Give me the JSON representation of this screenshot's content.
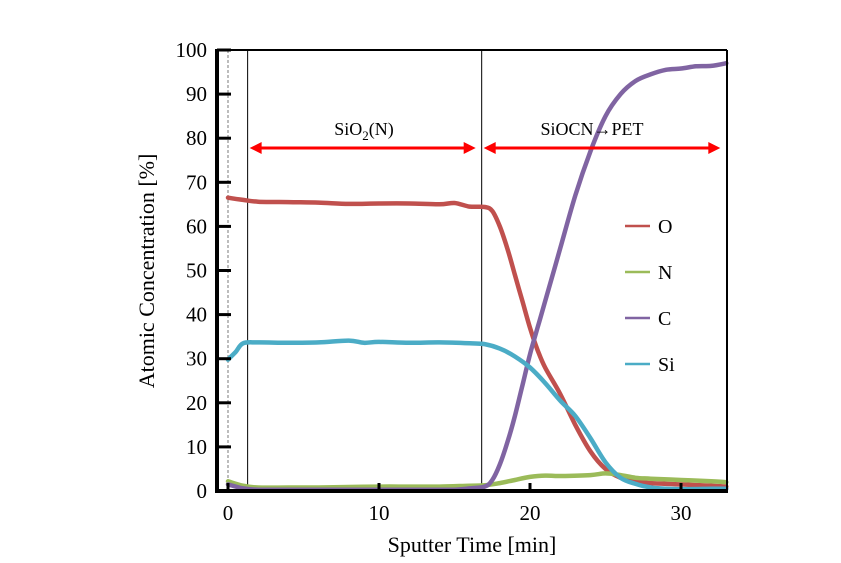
{
  "chart_data": {
    "type": "line",
    "title": "",
    "xlabel": "Sputter Time [min]",
    "ylabel": "Atomic Concentration [%]",
    "xlim": [
      0,
      33
    ],
    "ylim": [
      0,
      100
    ],
    "xticks": [
      0,
      10,
      20,
      30
    ],
    "yticks": [
      0,
      10,
      20,
      30,
      40,
      50,
      60,
      70,
      80,
      90,
      100
    ],
    "grid": false,
    "legend": {
      "position": "right-middle",
      "entries": [
        "O",
        "N",
        "C",
        "Si"
      ]
    },
    "series": [
      {
        "name": "O",
        "color": "#c0504d",
        "x": [
          0,
          1,
          2,
          4,
          6,
          8,
          10,
          12,
          14,
          15,
          16,
          17,
          17.5,
          18,
          18.5,
          19,
          19.5,
          20,
          20.5,
          21,
          22,
          23,
          24,
          25,
          26,
          27,
          28,
          30,
          32,
          33
        ],
        "y": [
          66.5,
          66,
          65.6,
          65.5,
          65.4,
          65.1,
          65.2,
          65.2,
          65.0,
          65.3,
          64.5,
          64.4,
          63.5,
          60,
          55,
          49,
          43,
          37,
          32,
          28,
          22,
          15,
          9,
          5,
          3,
          2.2,
          1.8,
          1.5,
          1.2,
          1.0
        ]
      },
      {
        "name": "N",
        "color": "#9bbb59",
        "x": [
          0,
          1,
          2,
          4,
          6,
          8,
          10,
          12,
          14,
          16,
          17,
          18,
          19,
          20,
          21,
          22,
          24,
          25,
          26,
          27,
          28,
          30,
          32,
          33
        ],
        "y": [
          2.2,
          1.2,
          0.8,
          0.8,
          0.8,
          0.9,
          1.0,
          1.0,
          1.0,
          1.2,
          1.3,
          1.8,
          2.5,
          3.2,
          3.5,
          3.4,
          3.6,
          4.0,
          3.6,
          3.0,
          2.8,
          2.5,
          2.2,
          2.0
        ]
      },
      {
        "name": "C",
        "color": "#8064a2",
        "x": [
          0,
          1,
          2,
          4,
          6,
          8,
          10,
          12,
          14,
          15,
          16,
          17,
          17.5,
          18,
          18.5,
          19,
          19.5,
          20,
          20.5,
          21,
          22,
          23,
          24,
          25,
          26,
          27,
          28,
          29,
          30,
          31,
          32,
          33
        ],
        "y": [
          1.5,
          0.6,
          0.3,
          0.3,
          0.3,
          0.3,
          0.3,
          0.3,
          0.3,
          0.3,
          0.6,
          1.0,
          2.5,
          6,
          11,
          17,
          24,
          31,
          37,
          43,
          55,
          67,
          77,
          85,
          90,
          93,
          94.5,
          95.5,
          95.8,
          96.3,
          96.4,
          97
        ]
      },
      {
        "name": "Si",
        "color": "#4bacc6",
        "x": [
          0,
          0.5,
          1,
          2,
          4,
          6,
          8,
          9,
          10,
          12,
          14,
          16,
          17,
          18,
          19,
          20,
          21,
          22,
          23,
          24,
          25,
          26,
          27,
          28,
          29,
          30,
          32,
          33
        ],
        "y": [
          29.8,
          31.5,
          33.5,
          33.7,
          33.6,
          33.7,
          34.1,
          33.6,
          33.8,
          33.6,
          33.7,
          33.5,
          33.3,
          32.3,
          30.5,
          28,
          24.5,
          20.5,
          17,
          12,
          6.5,
          3,
          1.6,
          0.8,
          0.5,
          0.4,
          0.5,
          0.5
        ]
      }
    ],
    "annotations": [
      {
        "label": "SiO",
        "subscript": "2",
        "suffix": "(N)",
        "x_from": 1.3,
        "x_to": 16.8,
        "y": 78
      },
      {
        "label": "SiOCN→PET",
        "x_from": 16.8,
        "x_to": 33,
        "y": 78
      }
    ],
    "vertical_lines": [
      {
        "x": 0,
        "style": "dashed",
        "color": "#999999"
      },
      {
        "x": 1.3,
        "style": "solid",
        "color": "#000000"
      },
      {
        "x": 16.8,
        "style": "solid",
        "color": "#000000"
      }
    ],
    "arrow_color": "#ff0000"
  }
}
